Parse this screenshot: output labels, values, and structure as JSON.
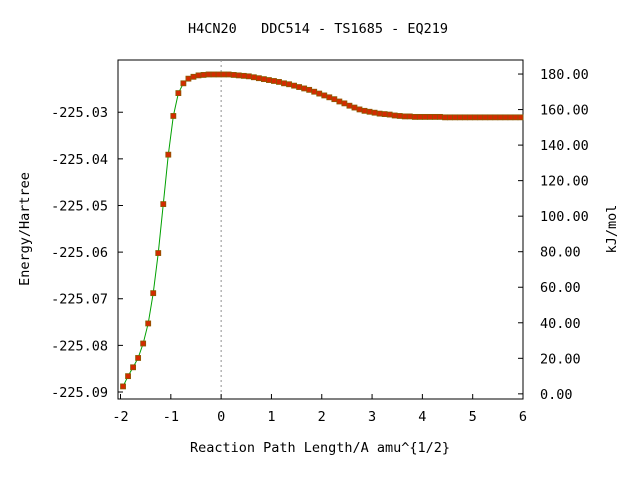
{
  "colors": {
    "curve": "#00a000",
    "marker_fill": "#d42a00",
    "marker_edge": "#8a5a00",
    "ts_line": "#909090",
    "axes": "#000000",
    "background": "#ffffff"
  },
  "chart_data": {
    "type": "line",
    "title": "H4CN20   DDC514 - TS1685 - EQ219",
    "xlabel": "Reaction Path Length/A amu^{1/2}",
    "ylabel": "Energy/Hartree",
    "y2label": "kJ/mol",
    "xlim": [
      -2.05,
      6.0
    ],
    "ylim": [
      -225.0915,
      -225.0188
    ],
    "y2lim": [
      -2.9,
      187.9
    ],
    "x_ticks": [
      "-2",
      "-1",
      "0",
      "1",
      "2",
      "3",
      "4",
      "5",
      "6"
    ],
    "x_tick_values": [
      -2,
      -1,
      0,
      1,
      2,
      3,
      4,
      5,
      6
    ],
    "y_ticks": [
      "-225.03",
      "-225.04",
      "-225.05",
      "-225.06",
      "-225.07",
      "-225.08",
      "-225.09"
    ],
    "y_tick_values": [
      -225.03,
      -225.04,
      -225.05,
      -225.06,
      -225.07,
      -225.08,
      -225.09
    ],
    "y2_ticks": [
      "180.00",
      "160.00",
      "140.00",
      "120.00",
      "100.00",
      "80.00",
      "60.00",
      "40.00",
      "20.00",
      "0.00"
    ],
    "y2_tick_values": [
      180,
      160,
      140,
      120,
      100,
      80,
      60,
      40,
      20,
      0
    ],
    "ts_x": 0.0,
    "grid": false,
    "series": [
      {
        "x": [
          -1.95,
          -1.85,
          -1.75,
          -1.65,
          -1.55,
          -1.45,
          -1.35,
          -1.25,
          -1.15,
          -1.05,
          -0.95,
          -0.85,
          -0.75,
          -0.65,
          -0.55,
          -0.45,
          -0.35,
          -0.25,
          -0.15,
          -0.05,
          0.05,
          0.15,
          0.25,
          0.35,
          0.45,
          0.55,
          0.65,
          0.75,
          0.85,
          0.95,
          1.05,
          1.15,
          1.25,
          1.35,
          1.45,
          1.55,
          1.65,
          1.75,
          1.85,
          1.95,
          2.05,
          2.15,
          2.25,
          2.35,
          2.45,
          2.55,
          2.65,
          2.75,
          2.85,
          2.95,
          3.05,
          3.15,
          3.25,
          3.35,
          3.45,
          3.55,
          3.65,
          3.75,
          3.85,
          3.95,
          4.05,
          4.15,
          4.25,
          4.35,
          4.45,
          4.55,
          4.65,
          4.75,
          4.85,
          4.95,
          5.05,
          5.15,
          5.25,
          5.35,
          5.45,
          5.55,
          5.65,
          5.75,
          5.85,
          5.95
        ],
        "y": [
          -225.0888,
          -225.0866,
          -225.0847,
          -225.0827,
          -225.0796,
          -225.0753,
          -225.0688,
          -225.0602,
          -225.0497,
          -225.0391,
          -225.0308,
          -225.0259,
          -225.0238,
          -225.0228,
          -225.0224,
          -225.0221,
          -225.022,
          -225.0219,
          -225.0219,
          -225.0219,
          -225.0219,
          -225.0219,
          -225.022,
          -225.0221,
          -225.0222,
          -225.0223,
          -225.0225,
          -225.0227,
          -225.0229,
          -225.0231,
          -225.0233,
          -225.0235,
          -225.0238,
          -225.024,
          -225.0243,
          -225.0246,
          -225.0249,
          -225.0252,
          -225.0256,
          -225.026,
          -225.0264,
          -225.0268,
          -225.0272,
          -225.0277,
          -225.0281,
          -225.0286,
          -225.029,
          -225.0294,
          -225.0297,
          -225.0299,
          -225.0301,
          -225.0303,
          -225.0304,
          -225.0305,
          -225.0307,
          -225.0308,
          -225.0309,
          -225.0309,
          -225.031,
          -225.031,
          -225.031,
          -225.031,
          -225.031,
          -225.031,
          -225.0311,
          -225.0311,
          -225.0311,
          -225.0311,
          -225.0311,
          -225.0311,
          -225.0311,
          -225.0311,
          -225.0311,
          -225.0311,
          -225.0311,
          -225.0311,
          -225.0311,
          -225.0311,
          -225.0311,
          -225.0311
        ]
      }
    ]
  }
}
